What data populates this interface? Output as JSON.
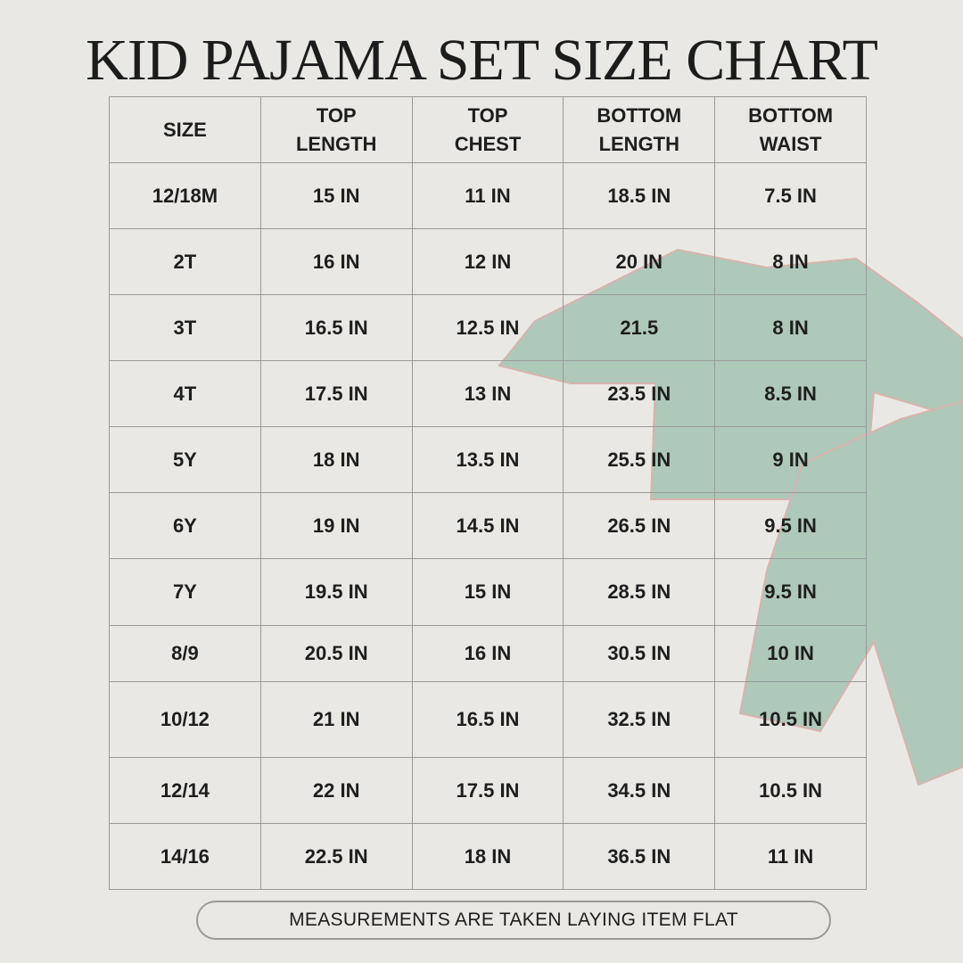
{
  "header": {
    "title": "KID PAJAMA SET SIZE CHART"
  },
  "table": {
    "headers": [
      "SIZE",
      "TOP LENGTH",
      "TOP CHEST",
      "BOTTOM LENGTH",
      "BOTTOM WAIST"
    ],
    "rows": [
      [
        "12/18M",
        "15 IN",
        "11 IN",
        "18.5 IN",
        "7.5 IN"
      ],
      [
        "2T",
        "16 IN",
        "12 IN",
        "20 IN",
        "8 IN"
      ],
      [
        "3T",
        "16.5 IN",
        "12.5 IN",
        "21.5",
        "8 IN"
      ],
      [
        "4T",
        "17.5 IN",
        "13 IN",
        "23.5 IN",
        "8.5 IN"
      ],
      [
        "5Y",
        "18 IN",
        "13.5 IN",
        "25.5 IN",
        "9 IN"
      ],
      [
        "6Y",
        "19 IN",
        "14.5 IN",
        "26.5 IN",
        "9.5 IN"
      ],
      [
        "7Y",
        "19.5 IN",
        "15 IN",
        "28.5 IN",
        "9.5 IN"
      ],
      [
        "8/9",
        "20.5 IN",
        "16 IN",
        "30.5 IN",
        "10 IN"
      ],
      [
        "10/12",
        "21 IN",
        "16.5 IN",
        "32.5 IN",
        "10.5 IN"
      ],
      [
        "12/14",
        "22 IN",
        "17.5 IN",
        "34.5 IN",
        "10.5 IN"
      ],
      [
        "14/16",
        "22.5 IN",
        "18 IN",
        "36.5 IN",
        "11 IN"
      ]
    ]
  },
  "footer": {
    "note": "MEASUREMENTS ARE TAKEN LAYING ITEM FLAT"
  }
}
